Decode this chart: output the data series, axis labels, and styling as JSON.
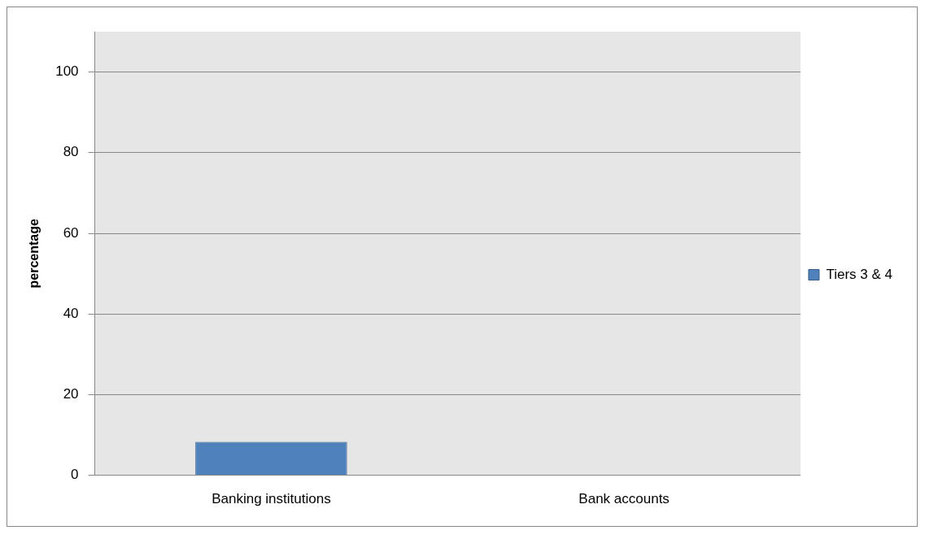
{
  "chart_data": {
    "type": "bar",
    "ylabel": "percentage",
    "categories": [
      "Banking institutions",
      "Bank accounts"
    ],
    "series": [
      {
        "name": "Tiers 3 & 4",
        "color": "#4f81bd",
        "values": [
          8.3,
          0
        ]
      }
    ],
    "ylim": [
      0,
      110
    ],
    "yticks": [
      0,
      20,
      40,
      60,
      80,
      100
    ],
    "grid": "y",
    "legend": "right"
  }
}
